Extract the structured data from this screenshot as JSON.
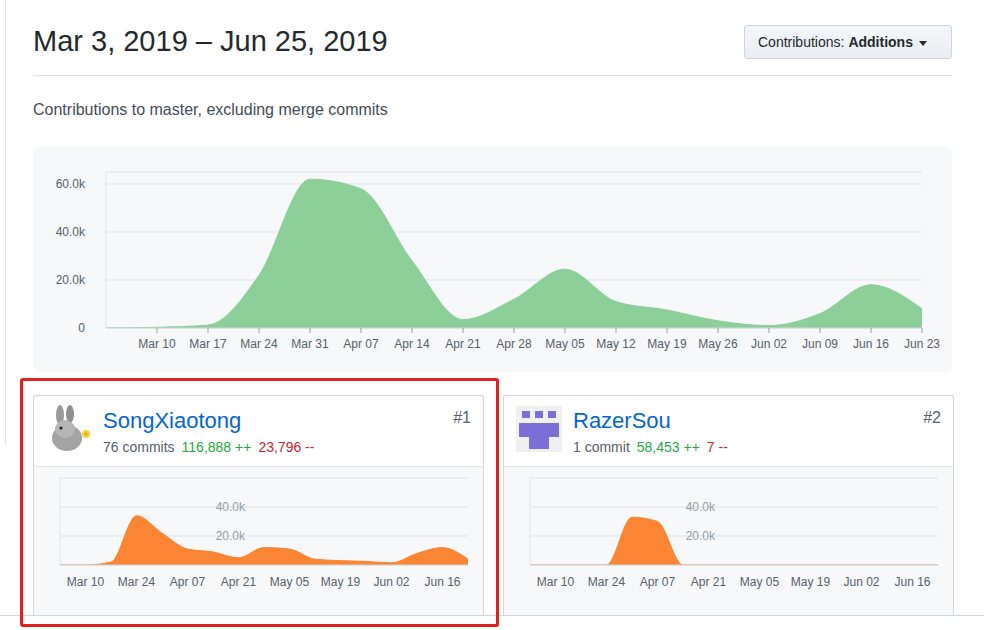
{
  "header": {
    "title": "Mar 3, 2019 – Jun 25, 2019",
    "dropdown_label": "Contributions:",
    "dropdown_value": "Additions",
    "subtitle": "Contributions to master, excluding merge commits"
  },
  "contributors": [
    {
      "name": "SongXiaotong",
      "rank": "#1",
      "commits": "76 commits",
      "additions": "116,888 ++",
      "deletions": "23,796 --"
    },
    {
      "name": "RazerSou",
      "rank": "#2",
      "commits": "1 commit",
      "additions": "58,453 ++",
      "deletions": "7 --"
    }
  ],
  "chart_data": [
    {
      "type": "area",
      "categories": [
        null,
        "Mar 10",
        "Mar 17",
        "Mar 24",
        "Mar 31",
        "Apr 07",
        "Apr 14",
        "Apr 21",
        "Apr 28",
        "May 05",
        "May 12",
        "May 19",
        "May 26",
        "Jun 02",
        "Jun 09",
        "Jun 16",
        "Jun 23"
      ],
      "values": [
        0,
        300,
        1200,
        22000,
        62000,
        58000,
        28000,
        3500,
        12000,
        24500,
        11000,
        7500,
        3000,
        1000,
        6000,
        18000,
        8000
      ],
      "color": "#8ccf99",
      "ylim": [
        0,
        65000
      ],
      "yticks": [
        0,
        {
          "value": 20000,
          "label": "20.0k"
        },
        {
          "value": 40000,
          "label": "40.0k"
        },
        {
          "value": 60000,
          "label": "60.0k"
        }
      ],
      "grid": true
    },
    {
      "type": "area",
      "categories": [
        null,
        "Mar 10",
        null,
        "Mar 24",
        null,
        "Apr 07",
        null,
        "Apr 21",
        null,
        "May 05",
        null,
        "May 19",
        null,
        "Jun 02",
        null,
        "Jun 16",
        null
      ],
      "values": [
        0,
        0,
        2000,
        34000,
        22000,
        11000,
        9000,
        5000,
        12000,
        11000,
        4000,
        3000,
        2500,
        1500,
        8000,
        12000,
        4000
      ],
      "color": "#fb8532",
      "ylim": [
        0,
        60000
      ],
      "yticks": [
        {
          "value": 20000,
          "label": "20.0k"
        },
        {
          "value": 40000,
          "label": "40.0k"
        }
      ],
      "grid": true
    },
    {
      "type": "area",
      "categories": [
        null,
        "Mar 10",
        null,
        "Mar 24",
        null,
        "Apr 07",
        null,
        "Apr 21",
        null,
        "May 05",
        null,
        "May 19",
        null,
        "Jun 02",
        null,
        "Jun 16",
        null
      ],
      "values": [
        0,
        0,
        0,
        0,
        33000,
        30000,
        0,
        0,
        0,
        0,
        0,
        0,
        0,
        0,
        0,
        0,
        0
      ],
      "color": "#fb8532",
      "ylim": [
        0,
        60000
      ],
      "yticks": [
        {
          "value": 20000,
          "label": "20.0k"
        },
        {
          "value": 40000,
          "label": "40.0k"
        }
      ],
      "grid": true
    }
  ]
}
